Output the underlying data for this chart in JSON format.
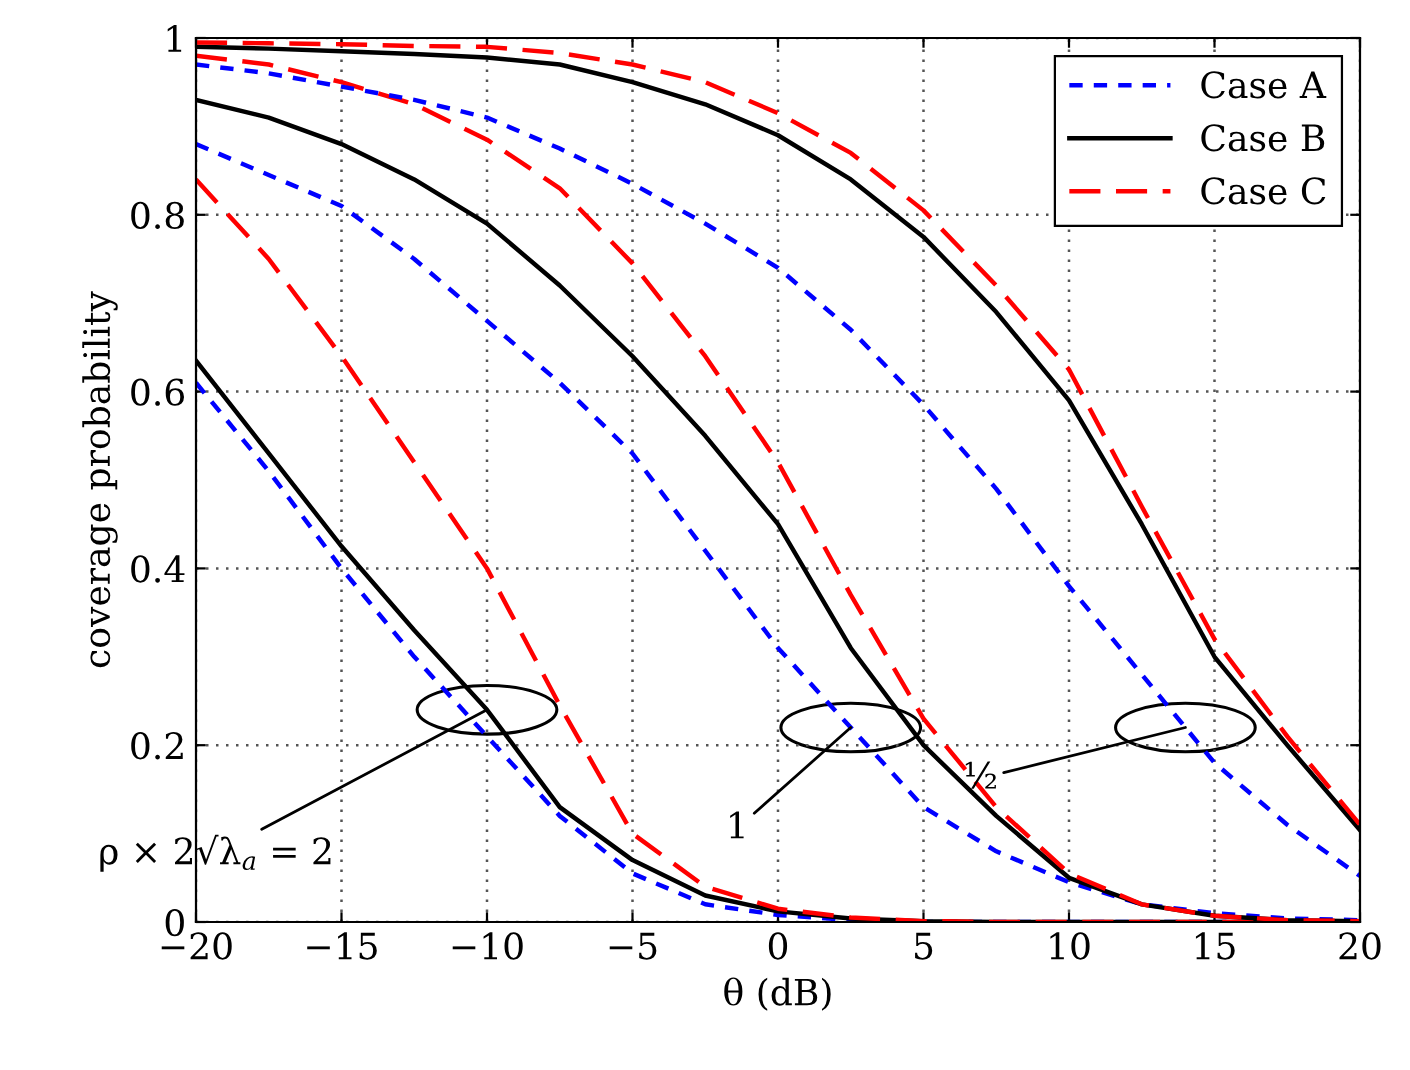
{
  "chart_data": {
    "type": "line",
    "xlabel": "θ (dB)",
    "ylabel": "coverage probability",
    "x": [
      -20,
      -17.5,
      -15,
      -12.5,
      -10,
      -7.5,
      -5,
      -2.5,
      0,
      2.5,
      5,
      7.5,
      10,
      12.5,
      15,
      17.5,
      20
    ],
    "series": [
      {
        "name": "Case A",
        "color": "#0000ff",
        "line_style": "dotted",
        "values": [
          0.61,
          0.51,
          0.4,
          0.3,
          0.21,
          0.12,
          0.055,
          0.02,
          0.008,
          0.002,
          0,
          0,
          0,
          0,
          0,
          0,
          0
        ]
      },
      {
        "name": "Case B",
        "color": "#000000",
        "line_style": "solid",
        "values": [
          0.635,
          0.53,
          0.425,
          0.33,
          0.24,
          0.13,
          0.07,
          0.03,
          0.012,
          0.004,
          0.001,
          0,
          0,
          0,
          0,
          0,
          0
        ]
      },
      {
        "name": "Case C",
        "color": "#ff0000",
        "line_style": "dashed",
        "values": [
          0.84,
          0.75,
          0.64,
          0.52,
          0.4,
          0.245,
          0.1,
          0.04,
          0.015,
          0.005,
          0.001,
          0,
          0,
          0,
          0,
          0,
          0
        ]
      },
      {
        "color": "#0000ff",
        "line_style": "dotted",
        "values": [
          0.88,
          0.845,
          0.81,
          0.75,
          0.68,
          0.61,
          0.53,
          0.42,
          0.31,
          0.22,
          0.13,
          0.08,
          0.045,
          0.02,
          0.01,
          0.004,
          0.002
        ]
      },
      {
        "color": "#000000",
        "line_style": "solid",
        "values": [
          0.93,
          0.91,
          0.88,
          0.84,
          0.79,
          0.72,
          0.64,
          0.55,
          0.45,
          0.31,
          0.2,
          0.12,
          0.05,
          0.02,
          0.007,
          0.002,
          0.001
        ]
      },
      {
        "color": "#ff0000",
        "line_style": "dashed",
        "values": [
          0.98,
          0.97,
          0.95,
          0.925,
          0.885,
          0.83,
          0.745,
          0.64,
          0.52,
          0.37,
          0.23,
          0.13,
          0.055,
          0.02,
          0.007,
          0.002,
          0.001
        ]
      },
      {
        "color": "#0000ff",
        "line_style": "dotted",
        "values": [
          0.97,
          0.96,
          0.945,
          0.93,
          0.91,
          0.875,
          0.835,
          0.79,
          0.74,
          0.67,
          0.585,
          0.49,
          0.38,
          0.28,
          0.18,
          0.11,
          0.052
        ]
      },
      {
        "color": "#000000",
        "line_style": "solid",
        "values": [
          0.99,
          0.988,
          0.985,
          0.982,
          0.978,
          0.97,
          0.95,
          0.925,
          0.89,
          0.84,
          0.775,
          0.69,
          0.59,
          0.45,
          0.3,
          0.2,
          0.104
        ]
      },
      {
        "color": "#ff0000",
        "line_style": "dashed",
        "values": [
          0.995,
          0.994,
          0.993,
          0.991,
          0.99,
          0.983,
          0.97,
          0.95,
          0.915,
          0.87,
          0.805,
          0.72,
          0.625,
          0.47,
          0.32,
          0.21,
          0.11
        ]
      }
    ],
    "xlim": [
      -20,
      20
    ],
    "ylim": [
      0,
      1
    ],
    "xticks": [
      {
        "value": -20,
        "label": "−20"
      },
      {
        "value": -15,
        "label": "−15"
      },
      {
        "value": -10,
        "label": "−10"
      },
      {
        "value": -5,
        "label": "−5"
      },
      0,
      5,
      10,
      15,
      20
    ],
    "yticks": [
      0,
      0.2,
      0.4,
      0.6,
      0.8,
      1
    ],
    "annotations": [
      {
        "text": "ρ × 2√λ$_{a}$ = 2",
        "x": -10,
        "y": 0.24
      },
      {
        "text": "1",
        "x": 2.5,
        "y": 0.22
      },
      {
        "text": "½",
        "x": 14,
        "y": 0.22
      }
    ],
    "grid": true,
    "legend": "top right"
  }
}
